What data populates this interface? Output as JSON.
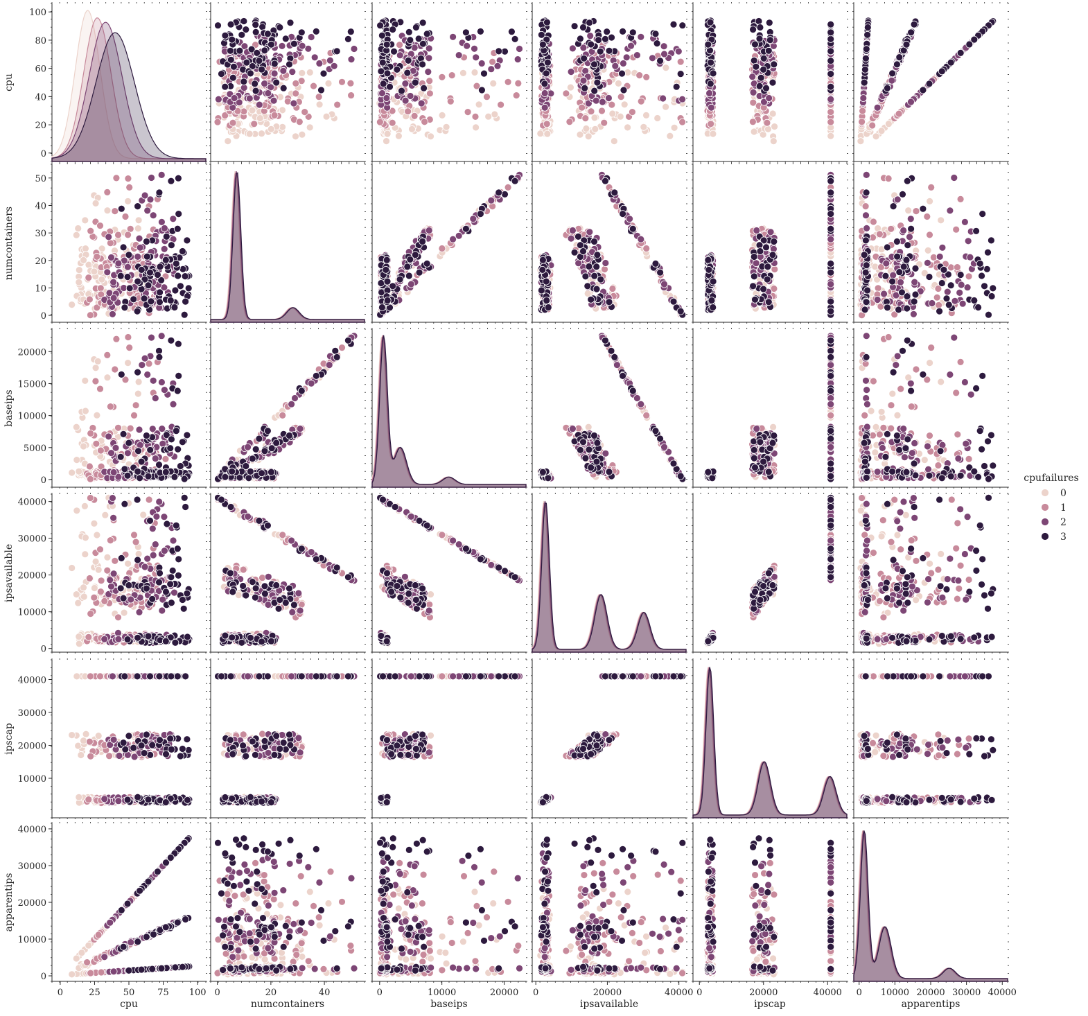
{
  "chart_data": {
    "type": "scatter",
    "variables": [
      "cpu",
      "numcontainers",
      "baseips",
      "ipsavailable",
      "ipscap",
      "apparentips"
    ],
    "hue": "cpufailures",
    "legend": {
      "title": "cpufailures",
      "placement": "right",
      "entries": [
        {
          "label": "0",
          "color": "#ecd3cb"
        },
        {
          "label": "1",
          "color": "#c88a9b"
        },
        {
          "label": "2",
          "color": "#7d4675"
        },
        {
          "label": "3",
          "color": "#2d1a3e"
        }
      ]
    },
    "axes": {
      "cpu": {
        "range": [
          -6,
          106
        ],
        "ticks": [
          0,
          25,
          50,
          75,
          100
        ],
        "ytick_labels": [
          "0",
          "20",
          "40",
          "60",
          "80",
          "100"
        ],
        "yticks": [
          0,
          20,
          40,
          60,
          80,
          100
        ]
      },
      "numcontainers": {
        "range": [
          -2.5,
          55
        ],
        "ticks": [
          0,
          10,
          20,
          30,
          40,
          50
        ],
        "xticks": [
          0,
          20,
          40
        ]
      },
      "baseips": {
        "range": [
          -1200,
          23500
        ],
        "ticks": [
          0,
          5000,
          10000,
          15000,
          20000
        ],
        "xticks": [
          0,
          10000,
          20000
        ]
      },
      "ipsavailable": {
        "range": [
          -1000,
          42000
        ],
        "ticks": [
          0,
          10000,
          20000,
          30000,
          40000
        ],
        "xticks": [
          0,
          20000,
          40000
        ]
      },
      "ipscap": {
        "range": [
          -2000,
          46000
        ],
        "ticks": [
          10000,
          20000,
          30000,
          40000
        ],
        "xticks": [
          0,
          20000,
          40000
        ]
      },
      "apparentips": {
        "range": [
          -1500,
          41500
        ],
        "ticks": [
          0,
          10000,
          20000,
          30000,
          40000
        ],
        "xticks": [
          0,
          10000,
          20000,
          30000,
          40000
        ]
      }
    },
    "kde": {
      "cpu": [
        {
          "hue": "0",
          "peak": 20,
          "sd": 9,
          "height": 1.0
        },
        {
          "hue": "1",
          "peak": 27,
          "sd": 10,
          "height": 0.95
        },
        {
          "hue": "2",
          "peak": 33,
          "sd": 12,
          "height": 0.92
        },
        {
          "hue": "3",
          "peak": 40,
          "sd": 14,
          "height": 0.85
        }
      ],
      "numcontainers": [
        {
          "peak": 7,
          "height": 1.0
        },
        {
          "peak": 28,
          "height": 0.08
        }
      ],
      "baseips": [
        {
          "peak": 500,
          "height": 1.0
        },
        {
          "peak": 3200,
          "height": 0.25
        },
        {
          "peak": 11000,
          "height": 0.05
        }
      ],
      "ipsavailable": [
        {
          "peak": 2500,
          "height": 1.0
        },
        {
          "peak": 18000,
          "height": 0.37
        },
        {
          "peak": 30000,
          "height": 0.25
        }
      ],
      "ipscap": [
        {
          "peak": 3000,
          "height": 1.0
        },
        {
          "peak": 20000,
          "height": 0.36
        },
        {
          "peak": 40500,
          "height": 0.26
        }
      ],
      "apparentips": [
        {
          "peak": 1200,
          "height": 1.0
        },
        {
          "peak": 7000,
          "height": 0.35
        },
        {
          "peak": 25000,
          "height": 0.07
        }
      ]
    }
  }
}
